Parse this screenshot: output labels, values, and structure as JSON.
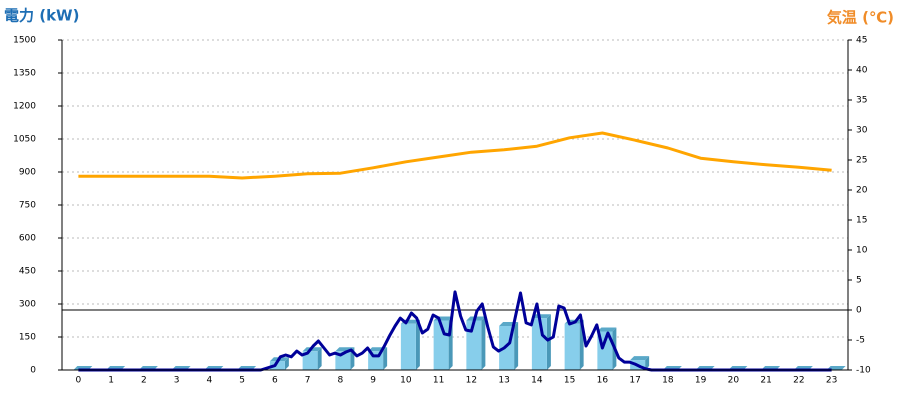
{
  "chart_data": {
    "type": "combo",
    "ylabel": "電力 (kW)",
    "y2label": "気温 (℃)",
    "categories": [
      "0",
      "1",
      "2",
      "3",
      "4",
      "5",
      "6",
      "7",
      "8",
      "9",
      "10",
      "11",
      "12",
      "13",
      "14",
      "15",
      "16",
      "17",
      "18",
      "19",
      "20",
      "21",
      "22",
      "23"
    ],
    "ylim": [
      0,
      1500
    ],
    "yticks": [
      0,
      150,
      300,
      450,
      600,
      750,
      900,
      1050,
      1200,
      1350,
      1500
    ],
    "y2lim": [
      -10,
      45
    ],
    "y2ticks": [
      -10,
      -5,
      0,
      5,
      10,
      15,
      20,
      25,
      30,
      35,
      40,
      45
    ],
    "y2_refline": 0,
    "grid": true,
    "series": [
      {
        "type": "bar",
        "color": "#87ceeb",
        "values": [
          0,
          0,
          0,
          0,
          0,
          0,
          40,
          85,
          85,
          85,
          210,
          225,
          225,
          200,
          235,
          210,
          175,
          45,
          0,
          0,
          0,
          0,
          0,
          0
        ]
      },
      {
        "type": "line",
        "color": "#000099",
        "x": [
          0,
          5.57,
          6,
          6.17,
          6.33,
          6.5,
          6.67,
          6.83,
          7,
          7.17,
          7.33,
          7.5,
          7.67,
          7.83,
          8,
          8.17,
          8.33,
          8.5,
          8.67,
          8.83,
          9,
          9.17,
          9.33,
          9.5,
          9.67,
          9.83,
          10,
          10.17,
          10.33,
          10.5,
          10.67,
          10.83,
          11,
          11.17,
          11.33,
          11.5,
          11.67,
          11.83,
          12,
          12.17,
          12.33,
          12.5,
          12.67,
          12.83,
          13,
          13.17,
          13.33,
          13.5,
          13.67,
          13.83,
          14,
          14.17,
          14.33,
          14.5,
          14.67,
          14.83,
          15,
          15.17,
          15.33,
          15.5,
          15.67,
          15.83,
          16,
          16.17,
          16.33,
          16.5,
          16.67,
          16.83,
          17,
          17.17,
          17.33,
          17.5,
          23
        ],
        "values": [
          0,
          0,
          20,
          60,
          68,
          60,
          86,
          68,
          77,
          109,
          132,
          100,
          68,
          77,
          68,
          82,
          91,
          64,
          77,
          100,
          64,
          64,
          105,
          155,
          200,
          236,
          214,
          259,
          236,
          168,
          186,
          250,
          236,
          164,
          159,
          355,
          245,
          182,
          177,
          268,
          300,
          195,
          105,
          86,
          100,
          123,
          232,
          350,
          214,
          205,
          300,
          159,
          136,
          150,
          291,
          282,
          209,
          218,
          250,
          109,
          155,
          205,
          100,
          168,
          114,
          55,
          36,
          36,
          27,
          14,
          5,
          0,
          0
        ]
      },
      {
        "type": "line",
        "axis": "y2",
        "color": "#ffa500",
        "values": [
          22.3,
          22.3,
          22.3,
          22.3,
          22.3,
          22.0,
          22.3,
          22.7,
          22.8,
          23.7,
          24.7,
          25.5,
          26.3,
          26.7,
          27.3,
          28.7,
          29.5,
          28.3,
          27.0,
          25.3,
          24.7,
          24.2,
          23.8,
          23.3
        ]
      }
    ]
  }
}
